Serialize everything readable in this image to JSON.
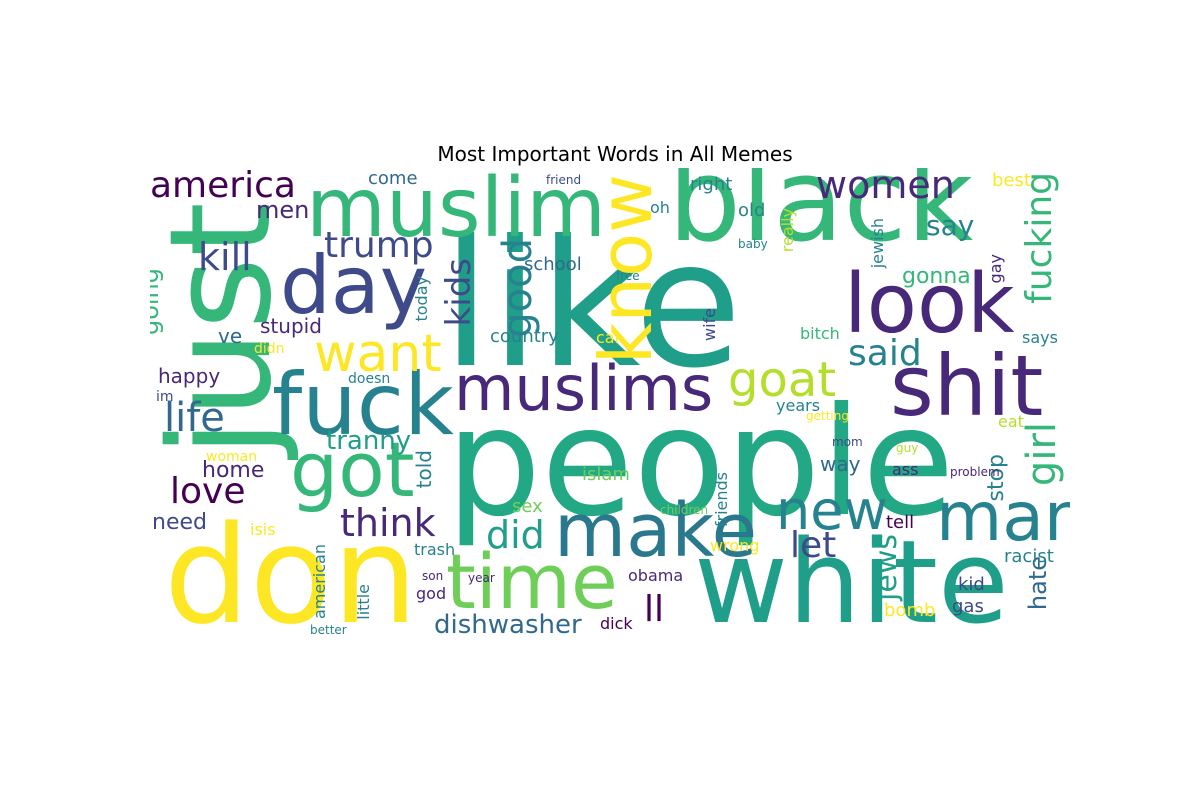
{
  "title": "Most Important Words in All Memes",
  "palette": {
    "a": "#440154",
    "b": "#482878",
    "c": "#3e4a89",
    "d": "#31688e",
    "e": "#26828e",
    "f": "#1f9e89",
    "g": "#35b779",
    "h": "#6ece58",
    "i": "#b5de2b",
    "j": "#fde725",
    "k": "#2a788e",
    "l": "#22a884"
  },
  "words": [
    {
      "text": "like",
      "color": "f"
    },
    {
      "text": "people",
      "color": "l"
    },
    {
      "text": "don",
      "color": "j"
    },
    {
      "text": "white",
      "color": "f"
    },
    {
      "text": "black",
      "color": "g"
    },
    {
      "text": "just",
      "color": "g"
    },
    {
      "text": "muslim",
      "color": "g"
    },
    {
      "text": "day",
      "color": "c"
    },
    {
      "text": "fuck",
      "color": "e"
    },
    {
      "text": "shit",
      "color": "b"
    },
    {
      "text": "look",
      "color": "b"
    },
    {
      "text": "muslims",
      "color": "b"
    },
    {
      "text": "time",
      "color": "h"
    },
    {
      "text": "make",
      "color": "k"
    },
    {
      "text": "got",
      "color": "g"
    },
    {
      "text": "man",
      "color": "e"
    },
    {
      "text": "know",
      "color": "j"
    },
    {
      "text": "goat",
      "color": "i"
    },
    {
      "text": "want",
      "color": "j"
    },
    {
      "text": "new",
      "color": "e"
    },
    {
      "text": "women",
      "color": "b"
    },
    {
      "text": "america",
      "color": "a"
    },
    {
      "text": "trump",
      "color": "c"
    },
    {
      "text": "kill",
      "color": "c"
    },
    {
      "text": "think",
      "color": "b"
    },
    {
      "text": "good",
      "color": "e"
    },
    {
      "text": "kids",
      "color": "c"
    },
    {
      "text": "fucking",
      "color": "g"
    },
    {
      "text": "said",
      "color": "e"
    },
    {
      "text": "let",
      "color": "c"
    },
    {
      "text": "did",
      "color": "f"
    },
    {
      "text": "love",
      "color": "a"
    },
    {
      "text": "life",
      "color": "d"
    },
    {
      "text": "girl",
      "color": "g"
    },
    {
      "text": "jews",
      "color": "f"
    },
    {
      "text": "dishwasher",
      "color": "d"
    },
    {
      "text": "ll",
      "color": "a"
    },
    {
      "text": "tranny",
      "color": "f"
    },
    {
      "text": "men",
      "color": "b"
    },
    {
      "text": "say",
      "color": "e"
    },
    {
      "text": "going",
      "color": "g"
    },
    {
      "text": "stupid",
      "color": "b"
    },
    {
      "text": "happy",
      "color": "b"
    },
    {
      "text": "home",
      "color": "b"
    },
    {
      "text": "need",
      "color": "c"
    },
    {
      "text": "told",
      "color": "e"
    },
    {
      "text": "hate",
      "color": "d"
    },
    {
      "text": "stop",
      "color": "e"
    },
    {
      "text": "gonna",
      "color": "g"
    },
    {
      "text": "way",
      "color": "d"
    },
    {
      "text": "school",
      "color": "d"
    },
    {
      "text": "country",
      "color": "e"
    },
    {
      "text": "ve",
      "color": "d"
    },
    {
      "text": "come",
      "color": "d"
    },
    {
      "text": "right",
      "color": "e"
    },
    {
      "text": "oh",
      "color": "e"
    },
    {
      "text": "old",
      "color": "e"
    },
    {
      "text": "really",
      "color": "i"
    },
    {
      "text": "jewish",
      "color": "e"
    },
    {
      "text": "best",
      "color": "j"
    },
    {
      "text": "islam",
      "color": "h"
    },
    {
      "text": "sex",
      "color": "h"
    },
    {
      "text": "friends",
      "color": "e"
    },
    {
      "text": "wrong",
      "color": "j"
    },
    {
      "text": "tell",
      "color": "a"
    },
    {
      "text": "racist",
      "color": "e"
    },
    {
      "text": "kid",
      "color": "c"
    },
    {
      "text": "gas",
      "color": "c"
    },
    {
      "text": "bomb",
      "color": "j"
    },
    {
      "text": "obama",
      "color": "b"
    },
    {
      "text": "god",
      "color": "b"
    },
    {
      "text": "american",
      "color": "e"
    },
    {
      "text": "little",
      "color": "e"
    },
    {
      "text": "trash",
      "color": "e"
    },
    {
      "text": "isis",
      "color": "j"
    },
    {
      "text": "woman",
      "color": "j"
    },
    {
      "text": "didn",
      "color": "j"
    },
    {
      "text": "doesn",
      "color": "e"
    },
    {
      "text": "im",
      "color": "c"
    },
    {
      "text": "today",
      "color": "e"
    },
    {
      "text": "car",
      "color": "j"
    },
    {
      "text": "bitch",
      "color": "g"
    },
    {
      "text": "wife",
      "color": "c"
    },
    {
      "text": "years",
      "color": "e"
    },
    {
      "text": "eat",
      "color": "i"
    },
    {
      "text": "ass",
      "color": "b"
    },
    {
      "text": "says",
      "color": "e"
    },
    {
      "text": "gay",
      "color": "b"
    },
    {
      "text": "free",
      "color": "e"
    },
    {
      "text": "baby",
      "color": "e"
    },
    {
      "text": "friend",
      "color": "c"
    },
    {
      "text": "getting",
      "color": "j"
    },
    {
      "text": "mom",
      "color": "c"
    },
    {
      "text": "guy",
      "color": "i"
    },
    {
      "text": "problem",
      "color": "b"
    },
    {
      "text": "children",
      "color": "h"
    },
    {
      "text": "son",
      "color": "b"
    },
    {
      "text": "year",
      "color": "b"
    },
    {
      "text": "better",
      "color": "e"
    },
    {
      "text": "dick",
      "color": "a"
    }
  ]
}
